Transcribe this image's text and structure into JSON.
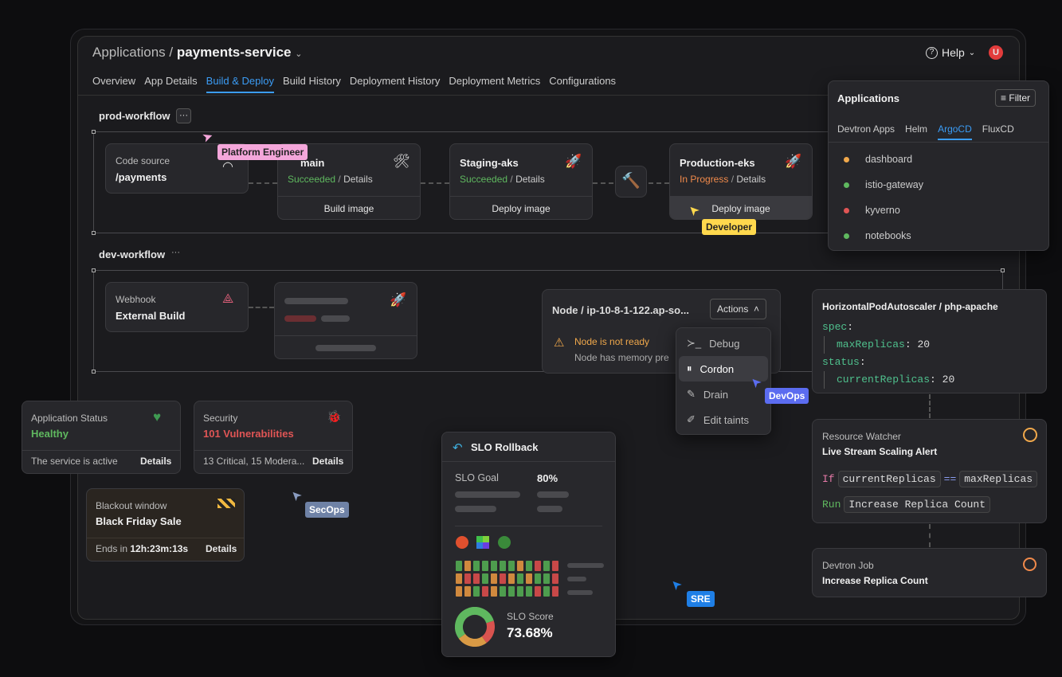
{
  "header": {
    "breadcrumb_root": "Applications",
    "breadcrumb_sep": "/",
    "app_name": "payments-service",
    "help": "Help",
    "avatar": "U"
  },
  "tabs": [
    {
      "label": "Overview"
    },
    {
      "label": "App Details"
    },
    {
      "label": "Build & Deploy",
      "active": true
    },
    {
      "label": "Build History"
    },
    {
      "label": "Deployment History"
    },
    {
      "label": "Deployment Metrics"
    },
    {
      "label": "Configurations"
    }
  ],
  "prod_workflow": {
    "name": "prod-workflow",
    "more": "···",
    "source": {
      "label": "Code source",
      "value": "/payments"
    },
    "build": {
      "title": "main",
      "status": "Succeeded",
      "sep": "/",
      "details": "Details",
      "action": "Build image"
    },
    "staging": {
      "title": "Staging-aks",
      "status": "Succeeded",
      "sep": "/",
      "details": "Details",
      "action": "Deploy image"
    },
    "production": {
      "title": "Production-eks",
      "status": "In Progress",
      "sep": "/",
      "details": "Details",
      "action": "Deploy image"
    }
  },
  "dev_workflow": {
    "name": "dev-workflow",
    "more": "···",
    "webhook": {
      "label": "Webhook",
      "value": "External Build"
    }
  },
  "cursors": {
    "platform": "Platform Engineer",
    "developer": "Developer",
    "devops": "DevOps",
    "secops": "SecOps",
    "sre": "SRE"
  },
  "colors": {
    "platform": "#f4a6da",
    "developer": "#ffd84d",
    "devops": "#5b6cf0",
    "secops": "#6f82a6",
    "sre": "#1f7fe6",
    "accent": "#3b9cf5"
  },
  "applications_popover": {
    "title": "Applications",
    "filter": "Filter",
    "tabs": [
      "Devtron Apps",
      "Helm",
      "ArgoCD",
      "FluxCD"
    ],
    "active_tab": "ArgoCD",
    "items": [
      {
        "name": "dashboard",
        "status": "#f0a84b"
      },
      {
        "name": "istio-gateway",
        "status": "#5fb85f"
      },
      {
        "name": "kyverno",
        "status": "#e05555"
      },
      {
        "name": "notebooks",
        "status": "#5fb85f"
      }
    ]
  },
  "node": {
    "title": "Node / ip-10-8-1-122.ap-so...",
    "actions": "Actions",
    "warning": "Node is not ready",
    "detail": "Node has memory pre",
    "menu": [
      {
        "label": "Debug",
        "icon": "terminal-icon"
      },
      {
        "label": "Cordon",
        "icon": "pause-circle-icon"
      },
      {
        "label": "Drain",
        "icon": "drain-icon"
      },
      {
        "label": "Edit taints",
        "icon": "taint-icon"
      }
    ]
  },
  "hpa": {
    "title": "HorizontalPodAutoscaler / php-apache",
    "spec": "spec",
    "max_key": "maxReplicas",
    "max_val": "20",
    "status": "status",
    "cur_key": "currentReplicas",
    "cur_val": "20"
  },
  "watcher": {
    "label": "Resource Watcher",
    "title": "Live Stream Scaling Alert",
    "if": "If",
    "lhs": "currentReplicas",
    "op": "==",
    "rhs": "maxReplicas",
    "run": "Run",
    "action": "Increase Replica Count"
  },
  "job": {
    "label": "Devtron Job",
    "title": "Increase Replica Count"
  },
  "app_status": {
    "label": "Application Status",
    "value": "Healthy",
    "desc": "The service is active",
    "details": "Details"
  },
  "security": {
    "label": "Security",
    "value": "101 Vulnerabilities",
    "desc": "13 Critical, 15 Modera...",
    "details": "Details"
  },
  "blackout": {
    "label": "Blackout window",
    "value": "Black Friday Sale",
    "ends_label": "Ends in",
    "ends_value": "12h:23m:13s",
    "details": "Details"
  },
  "slo": {
    "title": "SLO Rollback",
    "goal_label": "SLO Goal",
    "goal_value": "80%",
    "score_label": "SLO Score",
    "score_value": "73.68%",
    "grid": [
      [
        "g",
        "o",
        "g",
        "g",
        "g",
        "g",
        "g",
        "o",
        "g",
        "r",
        "g",
        "r"
      ],
      [
        "o",
        "r",
        "r",
        "g",
        "o",
        "r",
        "o",
        "g",
        "o",
        "g",
        "g",
        "r"
      ],
      [
        "o",
        "o",
        "g",
        "r",
        "o",
        "g",
        "g",
        "g",
        "g",
        "r",
        "g",
        "r"
      ]
    ],
    "donut": [
      {
        "color": "#5fb85f",
        "share": 0.55
      },
      {
        "color": "#d99a45",
        "share": 0.25
      },
      {
        "color": "#d9534f",
        "share": 0.2
      }
    ]
  }
}
